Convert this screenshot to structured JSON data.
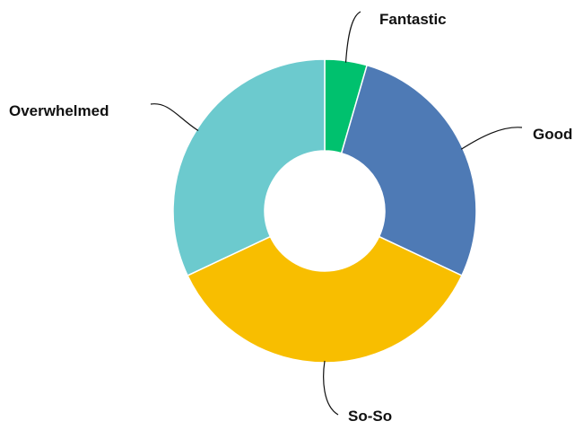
{
  "chart_data": {
    "type": "pie",
    "style": "donut",
    "slices": [
      {
        "label": "Fantastic",
        "value": 4.5,
        "color": "#00c16e"
      },
      {
        "label": "Good",
        "value": 27.5,
        "color": "#4e7ab5"
      },
      {
        "label": "So-So",
        "value": 36,
        "color": "#f8be00"
      },
      {
        "label": "Overwhelmed",
        "value": 32,
        "color": "#6ccace"
      }
    ],
    "start_angle_deg": 0,
    "direction": "clockwise",
    "legend": "none",
    "data_labels": "outside-with-leader-lines"
  }
}
